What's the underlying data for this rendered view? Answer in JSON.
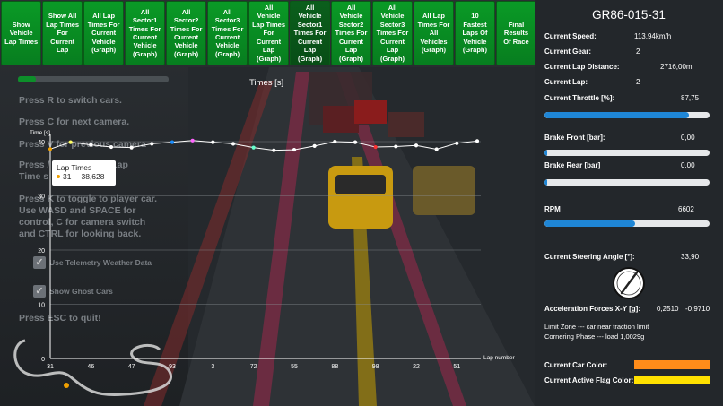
{
  "toolbar": {
    "buttons": [
      "Show\nVehicle\nLap Times",
      "Show All\nLap Times\nFor\nCurrent\nLap",
      "All Lap\nTimes For\nCurrent\nVehicle\n(Graph)",
      "All\nSector1\nTimes For\nCurrent\nVehicle\n(Graph)",
      "All\nSector2\nTimes For\nCurrent\nVehicle\n(Graph)",
      "All\nSector3\nTimes For\nCurrent\nVehicle\n(Graph)",
      "All\nVehicle\nLap Times\nFor\nCurrent\nLap\n(Graph)",
      "All\nVehicle\nSector1\nTimes For\nCurrent\nLap\n(Graph)",
      "All\nVehicle\nSector2\nTimes For\nCurrent\nLap\n(Graph)",
      "All\nVehicle\nSector3\nTimes For\nCurrent\nLap\n(Graph)",
      "All Lap\nTimes For\nAll\nVehicles\n(Graph)",
      "10\nFastest\nLaps Of\nVehicle\n(Graph)",
      "Final\nResults\nOf Race"
    ],
    "active_index": 7
  },
  "overlay": {
    "progress": 0.12,
    "help_lines": [
      "Press R to switch cars.",
      "Press C for next camera.",
      "Press V for previous camera",
      "Press / to toggle the Lap\nTime s",
      "Press K to toggle to player car.\nUse WASD and SPACE for\ncontrol, C for camera switch\nand CTRL for looking back.",
      "Press ESC to quit!"
    ],
    "checkboxes": [
      {
        "label": "Use Telemetry Weather Data",
        "checked": true
      },
      {
        "label": "Show Ghost Cars",
        "checked": true
      }
    ]
  },
  "chart_data": {
    "type": "line",
    "title": "Times [s]",
    "ylabel": "Time [s]",
    "xlabel": "Lap number",
    "ylim": [
      0,
      40
    ],
    "yticks": [
      0,
      10,
      20,
      30,
      40
    ],
    "xtick_labels": [
      "31",
      "46",
      "47",
      "93",
      "3",
      "72",
      "55",
      "88",
      "98",
      "22",
      "51"
    ],
    "categories": [
      "31",
      "",
      "46",
      "",
      "47",
      "",
      "93",
      "",
      "3",
      "",
      "72",
      "",
      "55",
      "",
      "88",
      "",
      "98",
      "",
      "22",
      "",
      "51",
      ""
    ],
    "values": [
      38.628,
      39.9,
      39.4,
      39.0,
      38.9,
      39.6,
      39.9,
      40.2,
      39.9,
      39.6,
      38.9,
      38.4,
      38.5,
      39.2,
      40.0,
      39.9,
      39.0,
      39.1,
      39.3,
      38.6,
      39.7,
      40.1
    ],
    "point_colors": [
      "#f0a000",
      "#ffff66",
      "#ffffff",
      "#ffffff",
      "#ffffff",
      "#ffffff",
      "#1e90ff",
      "#ff66ff",
      "#ffffff",
      "#ffffff",
      "#66ffcc",
      "#ffffff",
      "#ffffff",
      "#ffffff",
      "#ffffff",
      "#ffffff",
      "#ff3333",
      "#ffffff",
      "#ffffff",
      "#ffffff",
      "#ffffff",
      "#ffffff"
    ],
    "grid": true,
    "tooltip": {
      "title": "Lap Times",
      "lap": "31",
      "value": "38,628"
    }
  },
  "panel": {
    "car_id": "GR86-015-31",
    "speed_label": "Current Speed:",
    "speed_value": "113,94km/h",
    "gear_label": "Current Gear:",
    "gear_value": "2",
    "lap_distance_label": "Current Lap Distance:",
    "lap_distance_value": "2716,00m",
    "lap_label": "Current Lap:",
    "lap_value": "2",
    "throttle_label": "Current Throttle [%]:",
    "throttle_value": "87,75",
    "throttle_level": 0.8775,
    "brake_front_label": "Brake Front [bar]:",
    "brake_front_value": "0,00",
    "brake_front_level": 0.0,
    "brake_rear_label": "Brake Rear [bar]",
    "brake_rear_value": "0,00",
    "brake_rear_level": 0.0,
    "rpm_label": "RPM",
    "rpm_value": "6602",
    "rpm_level": 0.55,
    "steer_label": "Current Steering Angle [°]:",
    "steer_value": "33,90",
    "accel_label": "Acceleration Forces X-Y [g]:",
    "accel_x": "0,2510",
    "accel_y": "-0,9710",
    "limit_zone": "Limit Zone --- car near traction limit",
    "cornering": "Cornering Phase --- load 1,0029g",
    "car_color_label": "Current Car Color:",
    "car_color": "#ff8c1a",
    "flag_color_label": "Current Active Flag Color:",
    "flag_color": "#ffe000",
    "bar_color": "#1f86d6"
  }
}
